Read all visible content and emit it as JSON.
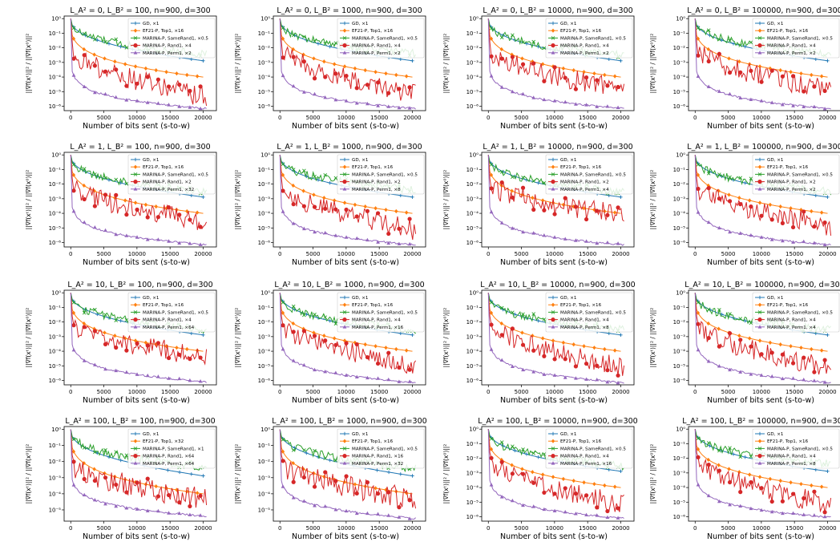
{
  "figure": {
    "xlabel": "Number of bits sent (s-to-w)",
    "ylabel": "||∇f(xᵗ)||² / ||∇f(x⁰)||²",
    "xticks": [
      "0",
      "5000",
      "10000",
      "15000",
      "20000"
    ],
    "yticks_by_row": [
      [
        "10⁰",
        "10⁻¹",
        "10⁻²",
        "10⁻³",
        "10⁻⁴",
        "10⁻⁵",
        "10⁻⁶"
      ],
      [
        "10⁰",
        "10⁻¹",
        "10⁻²",
        "10⁻³",
        "10⁻⁴",
        "10⁻⁵",
        "10⁻⁶"
      ],
      [
        "10⁰",
        "10⁻¹",
        "10⁻²",
        "10⁻³",
        "10⁻⁴",
        "10⁻⁵",
        "10⁻⁶"
      ],
      [
        "10⁰",
        "10⁻¹",
        "10⁻²",
        "10⁻³",
        "10⁻⁴",
        "10⁻⁵"
      ]
    ],
    "yticks_4th_row_last_col": [
      "10⁰",
      "10⁻¹",
      "10⁻²",
      "10⁻³",
      "10⁻⁴",
      "10⁻⁵",
      "10⁻⁶"
    ],
    "series_colors": {
      "GD": "#1f77b4",
      "EF21-P, Top1": "#ff7f0e",
      "MARINA-P, SameRand1": "#2ca02c",
      "MARINA-P, Rand1": "#d62728",
      "MARINA-P, Perm1": "#9467bd"
    },
    "series_markers": {
      "GD": "plus",
      "EF21-P, Top1": "diamond",
      "MARINA-P, SameRand1": "x",
      "MARINA-P, Rand1": "circle",
      "MARINA-P, Perm1": "triangle"
    }
  },
  "chart_data": [
    {
      "type": "line",
      "title": "L_A² = 0, L_B² = 100, n=900, d=300",
      "xlabel": "Number of bits sent (s-to-w)",
      "yscale": "log",
      "xlim": [
        -1000,
        22000
      ],
      "ylim": [
        5e-07,
        1.5
      ],
      "series": [
        {
          "name": "GD, ×1",
          "end": 0.0013
        },
        {
          "name": "EF21-P, Top1, ×16",
          "end": 0.0001
        },
        {
          "name": "MARINA-P, SameRand1, ×0.5",
          "end": 0.0038
        },
        {
          "name": "MARINA-P, Rand1, ×4",
          "end": 3e-06
        },
        {
          "name": "MARINA-P, Perm1, ×2",
          "end": 7e-07
        }
      ]
    },
    {
      "type": "line",
      "title": "L_A² = 0, L_B² = 1000, n=900, d=300",
      "xlabel": "Number of bits sent (s-to-w)",
      "yscale": "log",
      "xlim": [
        -1000,
        22000
      ],
      "ylim": [
        5e-07,
        1.5
      ],
      "series": [
        {
          "name": "GD, ×1",
          "end": 0.0013
        },
        {
          "name": "EF21-P, Top1, ×16",
          "end": 0.0001
        },
        {
          "name": "MARINA-P, SameRand1, ×0.5",
          "end": 0.004
        },
        {
          "name": "MARINA-P, Rand1, ×4",
          "end": 5e-06
        },
        {
          "name": "MARINA-P, Perm1, ×2",
          "end": 7e-07
        }
      ]
    },
    {
      "type": "line",
      "title": "L_A² = 0, L_B² = 10000, n=900, d=300",
      "xlabel": "Number of bits sent (s-to-w)",
      "yscale": "log",
      "xlim": [
        -1000,
        22000
      ],
      "ylim": [
        5e-07,
        1.5
      ],
      "series": [
        {
          "name": "GD, ×1",
          "end": 0.0013
        },
        {
          "name": "EF21-P, Top1, ×16",
          "end": 0.0001
        },
        {
          "name": "MARINA-P, SameRand1, ×0.5",
          "end": 0.003
        },
        {
          "name": "MARINA-P, Rand1, ×4",
          "end": 1e-05
        },
        {
          "name": "MARINA-P, Perm1, ×2",
          "end": 7e-07
        }
      ]
    },
    {
      "type": "line",
      "title": "L_A² = 0, L_B² = 100000, n=900, d=300",
      "xlabel": "Number of bits sent (s-to-w)",
      "yscale": "log",
      "xlim": [
        -1000,
        22000
      ],
      "ylim": [
        5e-07,
        1.5
      ],
      "series": [
        {
          "name": "GD, ×1",
          "end": 0.0013
        },
        {
          "name": "EF21-P, Top1, ×16",
          "end": 0.0001
        },
        {
          "name": "MARINA-P, SameRand1, ×0.5",
          "end": 0.004
        },
        {
          "name": "MARINA-P, Rand1, ×4",
          "end": 1e-05
        },
        {
          "name": "MARINA-P, Perm1, ×2",
          "end": 7e-07
        }
      ]
    },
    {
      "type": "line",
      "title": "L_A² = 1, L_B² = 100, n=900, d=300",
      "xlabel": "Number of bits sent (s-to-w)",
      "yscale": "log",
      "xlim": [
        -1000,
        22000
      ],
      "ylim": [
        5e-07,
        1.5
      ],
      "series": [
        {
          "name": "GD, ×1",
          "end": 0.0013
        },
        {
          "name": "EF21-P, Top1, ×16",
          "end": 0.0001
        },
        {
          "name": "MARINA-P, SameRand1, ×0.5",
          "end": 0.003
        },
        {
          "name": "MARINA-P, Rand1, ×2",
          "end": 2e-05
        },
        {
          "name": "MARINA-P, Perm1, ×32",
          "end": 7e-07
        }
      ]
    },
    {
      "type": "line",
      "title": "L_A² = 1, L_B² = 1000, n=900, d=300",
      "xlabel": "Number of bits sent (s-to-w)",
      "yscale": "log",
      "xlim": [
        -1000,
        22000
      ],
      "ylim": [
        5e-07,
        1.5
      ],
      "series": [
        {
          "name": "GD, ×1",
          "end": 0.0013
        },
        {
          "name": "EF21-P, Top1, ×16",
          "end": 0.0001
        },
        {
          "name": "MARINA-P, SameRand1, ×0.5",
          "end": 0.004
        },
        {
          "name": "MARINA-P, Rand1, ×2",
          "end": 5e-06
        },
        {
          "name": "MARINA-P, Perm1, ×8",
          "end": 7e-07
        }
      ]
    },
    {
      "type": "line",
      "title": "L_A² = 1, L_B² = 10000, n=900, d=300",
      "xlabel": "Number of bits sent (s-to-w)",
      "yscale": "log",
      "xlim": [
        -1000,
        22000
      ],
      "ylim": [
        5e-07,
        1.5
      ],
      "series": [
        {
          "name": "GD, ×1",
          "end": 0.0013
        },
        {
          "name": "EF21-P, Top1, ×16",
          "end": 0.0001
        },
        {
          "name": "MARINA-P, SameRand1, ×0.5",
          "end": 0.003
        },
        {
          "name": "MARINA-P, Rand1, ×2",
          "end": 6e-05
        },
        {
          "name": "MARINA-P, Perm1, ×4",
          "end": 7e-07
        }
      ]
    },
    {
      "type": "line",
      "title": "L_A² = 1, L_B² = 100000, n=900, d=300",
      "xlabel": "Number of bits sent (s-to-w)",
      "yscale": "log",
      "xlim": [
        -1000,
        22000
      ],
      "ylim": [
        5e-07,
        1.5
      ],
      "series": [
        {
          "name": "GD, ×1",
          "end": 0.0013
        },
        {
          "name": "EF21-P, Top1, ×16",
          "end": 0.0001
        },
        {
          "name": "MARINA-P, SameRand1, ×0.5",
          "end": 0.003
        },
        {
          "name": "MARINA-P, Rand1, ×2",
          "end": 1e-05
        },
        {
          "name": "MARINA-P, Perm1, ×2",
          "end": 7e-07
        }
      ]
    },
    {
      "type": "line",
      "title": "L_A² = 10, L_B² = 100, n=900, d=300",
      "xlabel": "Number of bits sent (s-to-w)",
      "yscale": "log",
      "xlim": [
        -1000,
        22000
      ],
      "ylim": [
        5e-07,
        1.5
      ],
      "series": [
        {
          "name": "GD, ×1",
          "end": 0.0013
        },
        {
          "name": "EF21-P, Top1, ×16",
          "end": 0.0001
        },
        {
          "name": "MARINA-P, SameRand1, ×0.5",
          "end": 0.003
        },
        {
          "name": "MARINA-P, Rand1, ×4",
          "end": 3e-05
        },
        {
          "name": "MARINA-P, Perm1, ×64",
          "end": 8e-07
        }
      ]
    },
    {
      "type": "line",
      "title": "L_A² = 10, L_B² = 1000, n=900, d=300",
      "xlabel": "Number of bits sent (s-to-w)",
      "yscale": "log",
      "xlim": [
        -1000,
        22000
      ],
      "ylim": [
        5e-07,
        1.5
      ],
      "series": [
        {
          "name": "GD, ×1",
          "end": 0.0013
        },
        {
          "name": "EF21-P, Top1, ×16",
          "end": 0.0001
        },
        {
          "name": "MARINA-P, SameRand1, ×0.5",
          "end": 0.003
        },
        {
          "name": "MARINA-P, Rand1, ×4",
          "end": 8e-06
        },
        {
          "name": "MARINA-P, Perm1, ×16",
          "end": 7e-07
        }
      ]
    },
    {
      "type": "line",
      "title": "L_A² = 10, L_B² = 10000, n=900, d=300",
      "xlabel": "Number of bits sent (s-to-w)",
      "yscale": "log",
      "xlim": [
        -1000,
        22000
      ],
      "ylim": [
        5e-07,
        1.5
      ],
      "series": [
        {
          "name": "GD, ×1",
          "end": 0.0013
        },
        {
          "name": "EF21-P, Top1, ×16",
          "end": 0.0001
        },
        {
          "name": "MARINA-P, SameRand1, ×0.5",
          "end": 0.003
        },
        {
          "name": "MARINA-P, Rand1, ×4",
          "end": 6e-06
        },
        {
          "name": "MARINA-P, Perm1, ×8",
          "end": 7e-07
        }
      ]
    },
    {
      "type": "line",
      "title": "L_A² = 10, L_B² = 100000, n=900, d=300",
      "xlabel": "Number of bits sent (s-to-w)",
      "yscale": "log",
      "xlim": [
        -1000,
        22000
      ],
      "ylim": [
        5e-07,
        1.5
      ],
      "series": [
        {
          "name": "GD, ×1",
          "end": 0.0013
        },
        {
          "name": "EF21-P, Top1, ×16",
          "end": 0.0001
        },
        {
          "name": "MARINA-P, SameRand1, ×0.5",
          "end": 0.003
        },
        {
          "name": "MARINA-P, Rand1, ×4",
          "end": 5e-06
        },
        {
          "name": "MARINA-P, Perm1, ×4",
          "end": 7e-07
        }
      ]
    },
    {
      "type": "line",
      "title": "L_A² = 100, L_B² = 100, n=900, d=300",
      "xlabel": "Number of bits sent (s-to-w)",
      "yscale": "log",
      "xlim": [
        -1000,
        22000
      ],
      "ylim": [
        2e-06,
        1.5
      ],
      "series": [
        {
          "name": "GD, ×1",
          "end": 0.0013
        },
        {
          "name": "EF21-P, Top1, ×32",
          "end": 0.0001
        },
        {
          "name": "MARINA-P, SameRand1, ×1",
          "end": 0.005
        },
        {
          "name": "MARINA-P, Rand1, ×64",
          "end": 3e-05
        },
        {
          "name": "MARINA-P, Perm1, ×64",
          "end": 4e-06
        }
      ]
    },
    {
      "type": "line",
      "title": "L_A² = 100, L_B² = 1000, n=900, d=300",
      "xlabel": "Number of bits sent (s-to-w)",
      "yscale": "log",
      "xlim": [
        -1000,
        22000
      ],
      "ylim": [
        2e-06,
        1.5
      ],
      "series": [
        {
          "name": "GD, ×1",
          "end": 0.0013
        },
        {
          "name": "EF21-P, Top1, ×16",
          "end": 0.0001
        },
        {
          "name": "MARINA-P, SameRand1, ×0.5",
          "end": 0.004
        },
        {
          "name": "MARINA-P, Rand1, ×16",
          "end": 3e-05
        },
        {
          "name": "MARINA-P, Perm1, ×32",
          "end": 3e-06
        }
      ]
    },
    {
      "type": "line",
      "title": "L_A² = 100, L_B² = 10000, n=900, d=300",
      "xlabel": "Number of bits sent (s-to-w)",
      "yscale": "log",
      "xlim": [
        -1000,
        22000
      ],
      "ylim": [
        5e-07,
        1.5
      ],
      "series": [
        {
          "name": "GD, ×1",
          "end": 0.0013
        },
        {
          "name": "EF21-P, Top1, ×16",
          "end": 0.0001
        },
        {
          "name": "MARINA-P, SameRand1, ×0.5",
          "end": 0.003
        },
        {
          "name": "MARINA-P, Rand1, ×4",
          "end": 5e-06
        },
        {
          "name": "MARINA-P, Perm1, ×16",
          "end": 8e-07
        }
      ]
    },
    {
      "type": "line",
      "title": "L_A² = 100, L_B² = 100000, n=900, d=300",
      "xlabel": "Number of bits sent (s-to-w)",
      "yscale": "log",
      "xlim": [
        -1000,
        22000
      ],
      "ylim": [
        5e-07,
        1.5
      ],
      "series": [
        {
          "name": "GD, ×1",
          "end": 0.0013
        },
        {
          "name": "EF21-P, Top1, ×16",
          "end": 0.0001
        },
        {
          "name": "MARINA-P, SameRand1, ×0.5",
          "end": 0.004
        },
        {
          "name": "MARINA-P, Rand1, ×4",
          "end": 5e-06
        },
        {
          "name": "MARINA-P, Perm1, ×8",
          "end": 9e-07
        }
      ]
    }
  ]
}
